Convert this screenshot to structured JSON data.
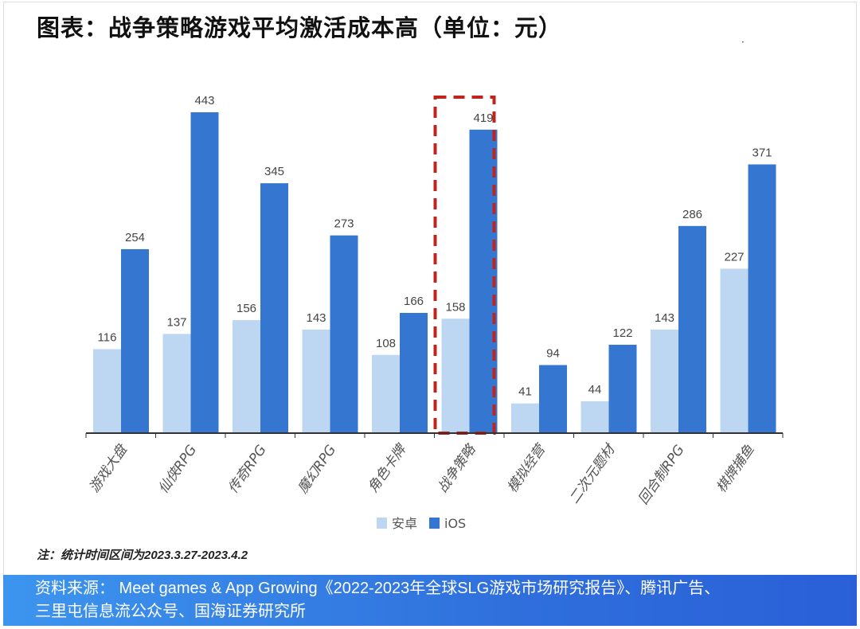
{
  "title": "图表：战争策略游戏平均激活成本高（单位：元）",
  "note": "注：统计时间区间为2023.3.27-2023.4.2",
  "source": [
    "资料来源： Meet games & App Growing《2022-2023年全球SLG游戏市场研究报告》、腾讯广告、",
    "三里屯信息流公众号、国海证券研究所"
  ],
  "mark": "·",
  "chart_data": {
    "type": "bar",
    "title": "战争策略游戏平均激活成本高（单位：元）",
    "categories": [
      "游戏大盘",
      "仙侠RPG",
      "传奇RPG",
      "魔幻RPG",
      "角色卡牌",
      "战争策略",
      "模拟经营",
      "二次元题材",
      "回合制RPG",
      "棋牌捕鱼"
    ],
    "series": [
      {
        "name": "安卓",
        "color": "#bdd7f3",
        "values": [
          116,
          137,
          156,
          143,
          108,
          158,
          41,
          44,
          143,
          227
        ]
      },
      {
        "name": "iOS",
        "color": "#3577d0",
        "values": [
          254,
          443,
          345,
          273,
          166,
          419,
          94,
          122,
          286,
          371
        ]
      }
    ],
    "ylim": [
      0,
      443
    ],
    "highlight": "战争策略",
    "highlight_color": "#c0241c",
    "legend_position": "bottom-center",
    "grid": false
  }
}
